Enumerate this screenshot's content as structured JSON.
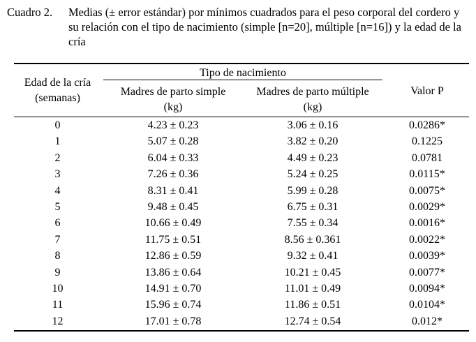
{
  "caption": {
    "label": "Cuadro 2.",
    "text": "Medias (± error estándar) por mínimos cuadrados para el peso corporal del cordero y su relación con el tipo de nacimiento (simple [n=20], múltiple [n=16]) y la edad de la cría"
  },
  "table": {
    "headers": {
      "edad": [
        "Edad de la cría",
        "(semanas)"
      ],
      "tipo": "Tipo de nacimiento",
      "simple": [
        "Madres de parto simple",
        "(kg)"
      ],
      "multiple": [
        "Madres de parto múltiple",
        "(kg)"
      ],
      "valor": "Valor P"
    },
    "rows": [
      {
        "edad": "0",
        "simple": "4.23 ± 0.23",
        "multiple": "3.06 ± 0.16",
        "valor": "0.0286*"
      },
      {
        "edad": "1",
        "simple": "5.07 ± 0.28",
        "multiple": "3.82 ± 0.20",
        "valor": "0.1225"
      },
      {
        "edad": "2",
        "simple": "6.04 ± 0.33",
        "multiple": "4.49 ± 0.23",
        "valor": "0.0781"
      },
      {
        "edad": "3",
        "simple": "7.26 ± 0.36",
        "multiple": "5.24 ± 0.25",
        "valor": "0.0115*"
      },
      {
        "edad": "4",
        "simple": "8.31 ± 0.41",
        "multiple": "5.99 ± 0.28",
        "valor": "0.0075*"
      },
      {
        "edad": "5",
        "simple": "9.48 ± 0.45",
        "multiple": "6.75 ± 0.31",
        "valor": "0.0029*"
      },
      {
        "edad": "6",
        "simple": "10.66 ± 0.49",
        "multiple": "7.55 ± 0.34",
        "valor": "0.0016*"
      },
      {
        "edad": "7",
        "simple": "11.75 ± 0.51",
        "multiple": "8.56 ± 0.361",
        "valor": "0.0022*"
      },
      {
        "edad": "8",
        "simple": "12.86 ± 0.59",
        "multiple": "9.32 ± 0.41",
        "valor": "0.0039*"
      },
      {
        "edad": "9",
        "simple": "13.86 ± 0.64",
        "multiple": "10.21 ± 0.45",
        "valor": "0.0077*"
      },
      {
        "edad": "10",
        "simple": "14.91 ± 0.70",
        "multiple": "11.01 ± 0.49",
        "valor": "0.0094*"
      },
      {
        "edad": "11",
        "simple": "15.96 ± 0.74",
        "multiple": "11.86 ± 0.51",
        "valor": "0.0104*"
      },
      {
        "edad": "12",
        "simple": "17.01 ± 0.78",
        "multiple": "12.74 ± 0.54",
        "valor": "0.012*"
      }
    ]
  }
}
